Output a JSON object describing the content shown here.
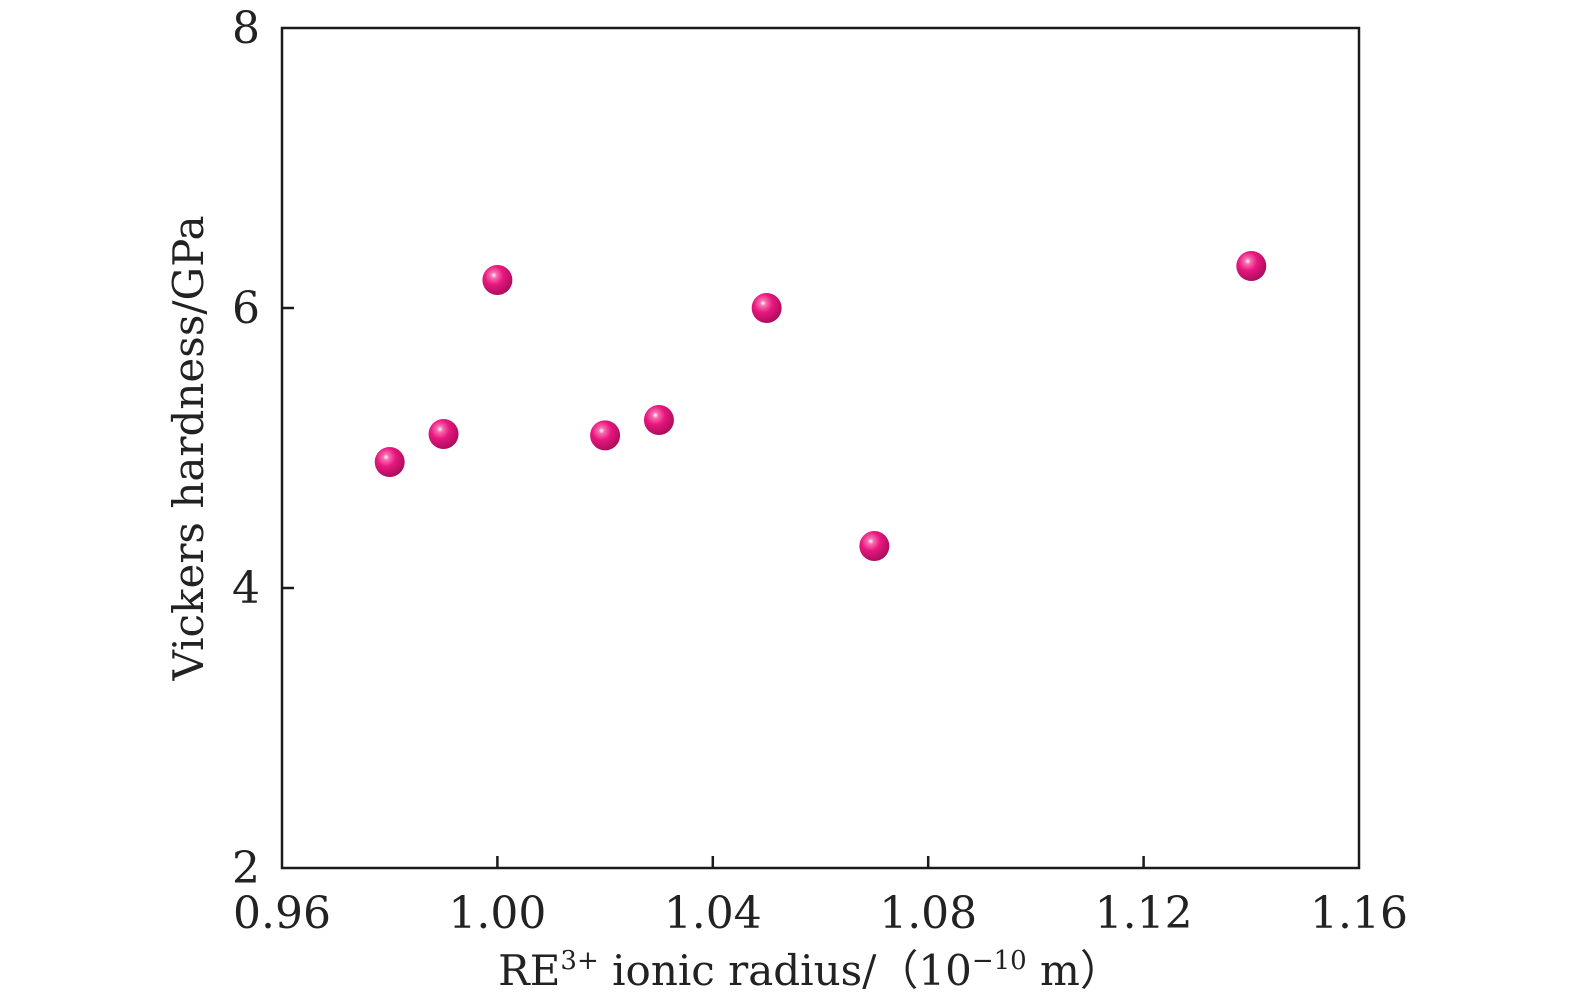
{
  "chart_data": {
    "type": "scatter",
    "xlabel": {
      "base": "RE",
      "sup": "3+",
      "middle": " ionic radius/（10",
      "exp": "−10",
      "unit": " m）"
    },
    "ylabel": "Vickers hardness/GPa",
    "xlim": [
      0.96,
      1.16
    ],
    "ylim": [
      2,
      8
    ],
    "x_ticks": [
      "0.96",
      "1.00",
      "1.04",
      "1.08",
      "1.12",
      "1.16"
    ],
    "y_ticks": [
      "2",
      "4",
      "6",
      "8"
    ],
    "grid": false,
    "marker_color": "#e8177f",
    "points": [
      {
        "x": 0.98,
        "y": 4.9
      },
      {
        "x": 0.99,
        "y": 5.1
      },
      {
        "x": 1.0,
        "y": 6.2
      },
      {
        "x": 1.02,
        "y": 5.09
      },
      {
        "x": 1.03,
        "y": 5.2
      },
      {
        "x": 1.05,
        "y": 6.0
      },
      {
        "x": 1.07,
        "y": 4.3
      },
      {
        "x": 1.14,
        "y": 6.3
      }
    ]
  }
}
